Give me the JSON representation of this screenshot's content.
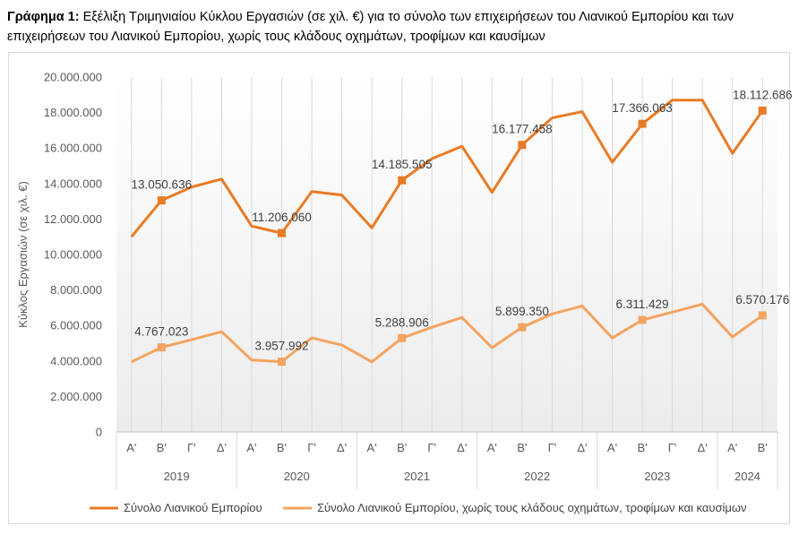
{
  "caption": {
    "prefix": "Γράφημα 1:",
    "text_line1": " Εξέλιξη Τριμηνιαίου Κύκλου Εργασιών (σε χιλ. €) για το σύνολο των επιχειρήσεων του Λιανικού Εμπορίου και των",
    "text_line2": "επιχειρήσεων του Λιανικού Εμπορίου, χωρίς τους κλάδους οχημάτων, τροφίμων και καυσίμων"
  },
  "chart_data": {
    "type": "line",
    "ylabel": "Κύκλος Εργασιών (σε χιλ. €)",
    "ylim": [
      0,
      20000000
    ],
    "y_ticks": [
      "0",
      "2.000.000",
      "4.000.000",
      "6.000.000",
      "8.000.000",
      "10.000.000",
      "12.000.000",
      "14.000.000",
      "16.000.000",
      "18.000.000",
      "20.000.000"
    ],
    "quarters": [
      "Α'",
      "Β'",
      "Γ'",
      "Δ'",
      "Α'",
      "Β'",
      "Γ'",
      "Δ'",
      "Α'",
      "Β'",
      "Γ'",
      "Δ'",
      "Α'",
      "Β'",
      "Γ'",
      "Δ'",
      "Α'",
      "Β'",
      "Γ'",
      "Δ'",
      "Α'",
      "Β'"
    ],
    "years": [
      {
        "label": "2019",
        "quarters": 4
      },
      {
        "label": "2020",
        "quarters": 4
      },
      {
        "label": "2021",
        "quarters": 4
      },
      {
        "label": "2022",
        "quarters": 4
      },
      {
        "label": "2023",
        "quarters": 4
      },
      {
        "label": "2024",
        "quarters": 2
      }
    ],
    "grid": "vertical",
    "legend_position": "bottom",
    "series": [
      {
        "name": "Σύνολο Λιανικού Εμπορίου",
        "color": "#E97B25",
        "values": [
          11000000,
          13050636,
          13800000,
          14250000,
          11600000,
          11206060,
          13550000,
          13350000,
          11500000,
          14185505,
          15400000,
          16100000,
          13500000,
          16177458,
          17700000,
          18050000,
          15200000,
          17366063,
          18700000,
          18700000,
          15700000,
          18112686
        ],
        "labels": [
          "",
          "13.050.636",
          "",
          "",
          "",
          "11.206.060",
          "",
          "",
          "",
          "14.185.505",
          "",
          "",
          "",
          "16.177.458",
          "",
          "",
          "",
          "17.366.063",
          "",
          "",
          "",
          "18.112.686"
        ]
      },
      {
        "name": "Σύνολο Λιανικού Εμπορίου, χωρίς τους κλάδους οχημάτων, τροφίμων και καυσίμων",
        "color": "#F4A460",
        "values": [
          3950000,
          4767023,
          5200000,
          5650000,
          4050000,
          3957992,
          5300000,
          4900000,
          3950000,
          5288906,
          5900000,
          6450000,
          4750000,
          5899350,
          6650000,
          7100000,
          5300000,
          6311429,
          6750000,
          7200000,
          5350000,
          6570176
        ],
        "labels": [
          "",
          "4.767.023",
          "",
          "",
          "",
          "3.957.992",
          "",
          "",
          "",
          "5.288.906",
          "",
          "",
          "",
          "5.899.350",
          "",
          "",
          "",
          "6.311.429",
          "",
          "",
          "",
          "6.570.176"
        ]
      }
    ]
  }
}
